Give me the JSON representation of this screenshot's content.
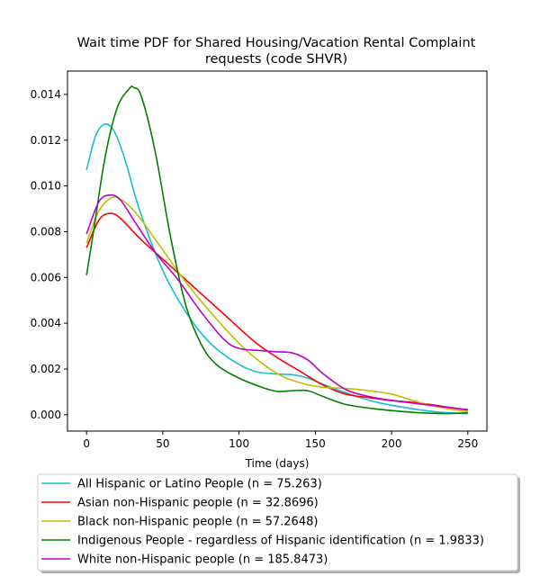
{
  "chart_data": {
    "type": "line",
    "title_line1": "Wait time PDF for Shared Housing/Vacation Rental Complaint",
    "title_line2": "requests (code SHVR)",
    "xlabel": "Time (days)",
    "ylabel": "",
    "xlim": [
      -12.5,
      262.5
    ],
    "ylim": [
      -0.000715,
      0.01502
    ],
    "x_ticks": [
      0,
      50,
      100,
      150,
      200,
      250
    ],
    "x_tick_labels": [
      "0",
      "50",
      "100",
      "150",
      "200",
      "250"
    ],
    "y_ticks": [
      0,
      0.002,
      0.004,
      0.006,
      0.008,
      0.01,
      0.012,
      0.014
    ],
    "y_tick_labels": [
      "0.000",
      "0.002",
      "0.004",
      "0.006",
      "0.008",
      "0.010",
      "0.012",
      "0.014"
    ],
    "grid": false,
    "legend_position": "below plot",
    "series": [
      {
        "name": "All Hispanic or Latino People (n = 75.263)",
        "color": "#17becf",
        "points": [
          [
            0,
            0.0107
          ],
          [
            6,
            0.0122
          ],
          [
            12,
            0.0127
          ],
          [
            18,
            0.0124
          ],
          [
            25,
            0.0112
          ],
          [
            35,
            0.0089
          ],
          [
            50,
            0.0063
          ],
          [
            65,
            0.0045
          ],
          [
            80,
            0.0032
          ],
          [
            95,
            0.0024
          ],
          [
            110,
            0.0019
          ],
          [
            125,
            0.00178
          ],
          [
            135,
            0.00175
          ],
          [
            145,
            0.0016
          ],
          [
            160,
            0.0012
          ],
          [
            175,
            0.00085
          ],
          [
            190,
            0.00055
          ],
          [
            210,
            0.0003
          ],
          [
            230,
            0.00012
          ],
          [
            250,
            5e-05
          ]
        ]
      },
      {
        "name": "Asian non-Hispanic people (n = 32.8696)",
        "color": "#ff0000",
        "points": [
          [
            0,
            0.0073
          ],
          [
            8,
            0.0085
          ],
          [
            15,
            0.0088
          ],
          [
            22,
            0.0086
          ],
          [
            35,
            0.0077
          ],
          [
            50,
            0.0068
          ],
          [
            70,
            0.0056
          ],
          [
            90,
            0.0044
          ],
          [
            110,
            0.0032
          ],
          [
            125,
            0.0025
          ],
          [
            140,
            0.0019
          ],
          [
            155,
            0.0013
          ],
          [
            170,
            0.0009
          ],
          [
            185,
            0.00075
          ],
          [
            200,
            0.00062
          ],
          [
            220,
            0.0005
          ],
          [
            235,
            0.00035
          ],
          [
            250,
            0.0002
          ]
        ]
      },
      {
        "name": "Black non-Hispanic people (n = 57.2648)",
        "color": "#bfbf00",
        "points": [
          [
            0,
            0.0075
          ],
          [
            8,
            0.0089
          ],
          [
            17,
            0.0095
          ],
          [
            25,
            0.0093
          ],
          [
            35,
            0.0086
          ],
          [
            50,
            0.0072
          ],
          [
            65,
            0.0058
          ],
          [
            85,
            0.0042
          ],
          [
            105,
            0.0028
          ],
          [
            125,
            0.0018
          ],
          [
            140,
            0.0014
          ],
          [
            155,
            0.0012
          ],
          [
            170,
            0.00115
          ],
          [
            185,
            0.00105
          ],
          [
            200,
            0.0009
          ],
          [
            215,
            0.0006
          ],
          [
            230,
            0.00035
          ],
          [
            250,
            0.00012
          ]
        ]
      },
      {
        "name": "Indigenous People - regardless of Hispanic identification (n = 1.9833)",
        "color": "#008000",
        "points": [
          [
            0,
            0.0061
          ],
          [
            5,
            0.0082
          ],
          [
            12,
            0.0112
          ],
          [
            20,
            0.0134
          ],
          [
            28,
            0.01425
          ],
          [
            31,
            0.0143
          ],
          [
            36,
            0.0139
          ],
          [
            45,
            0.0115
          ],
          [
            55,
            0.0078
          ],
          [
            65,
            0.0048
          ],
          [
            75,
            0.0031
          ],
          [
            85,
            0.0022
          ],
          [
            100,
            0.0016
          ],
          [
            115,
            0.0012
          ],
          [
            125,
            0.00102
          ],
          [
            135,
            0.00105
          ],
          [
            145,
            0.00105
          ],
          [
            155,
            0.0008
          ],
          [
            170,
            0.00045
          ],
          [
            190,
            0.00025
          ],
          [
            215,
            0.0001
          ],
          [
            235,
            5e-05
          ],
          [
            250,
            8e-05
          ]
        ]
      },
      {
        "name": "White non-Hispanic people (n = 185.8473)",
        "color": "#bf00bf",
        "points": [
          [
            0,
            0.0079
          ],
          [
            8,
            0.0093
          ],
          [
            15,
            0.0096
          ],
          [
            22,
            0.0094
          ],
          [
            32,
            0.0084
          ],
          [
            45,
            0.0071
          ],
          [
            60,
            0.0059
          ],
          [
            75,
            0.0045
          ],
          [
            90,
            0.0033
          ],
          [
            100,
            0.0029
          ],
          [
            115,
            0.0028
          ],
          [
            125,
            0.00275
          ],
          [
            135,
            0.0027
          ],
          [
            145,
            0.0024
          ],
          [
            155,
            0.0018
          ],
          [
            170,
            0.0011
          ],
          [
            185,
            0.0008
          ],
          [
            200,
            0.00063
          ],
          [
            225,
            0.00042
          ],
          [
            250,
            0.00022
          ]
        ]
      }
    ]
  }
}
